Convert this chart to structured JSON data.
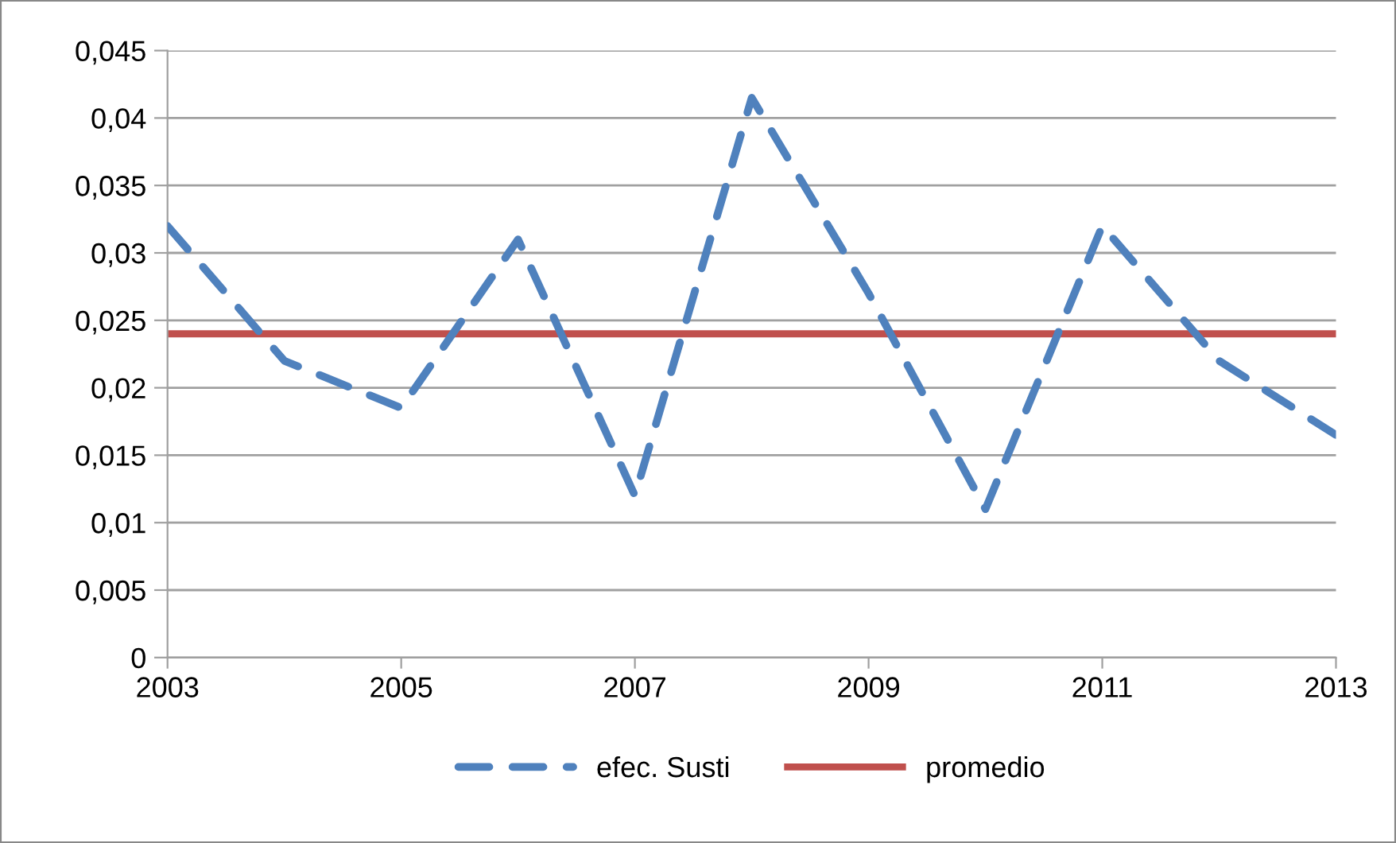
{
  "chart_data": {
    "type": "line",
    "x": [
      2003,
      2004,
      2005,
      2006,
      2007,
      2008,
      2009,
      2010,
      2011,
      2012,
      2013
    ],
    "series": [
      {
        "name": "efec. Susti",
        "color": "#4f81bd",
        "line_style": "dashed",
        "values": [
          0.032,
          0.022,
          0.0185,
          0.031,
          0.012,
          0.0415,
          0.027,
          0.011,
          0.032,
          0.022,
          0.0165
        ]
      },
      {
        "name": "promedio",
        "color": "#c0504d",
        "line_style": "solid",
        "values": [
          0.024,
          0.024,
          0.024,
          0.024,
          0.024,
          0.024,
          0.024,
          0.024,
          0.024,
          0.024,
          0.024
        ]
      }
    ],
    "xlim": [
      2003,
      2013
    ],
    "xticks": [
      2003,
      2005,
      2007,
      2009,
      2011,
      2013
    ],
    "ylim": [
      0,
      0.045
    ],
    "yticks": [
      {
        "value": 0,
        "label": "0"
      },
      {
        "value": 0.005,
        "label": "0,005"
      },
      {
        "value": 0.01,
        "label": "0,01"
      },
      {
        "value": 0.015,
        "label": "0,015"
      },
      {
        "value": 0.02,
        "label": "0,02"
      },
      {
        "value": 0.025,
        "label": "0,025"
      },
      {
        "value": 0.03,
        "label": "0,03"
      },
      {
        "value": 0.035,
        "label": "0,035"
      },
      {
        "value": 0.04,
        "label": "0,04"
      },
      {
        "value": 0.045,
        "label": "0,045"
      }
    ],
    "grid": "y",
    "legend": "bottom",
    "marker": "none"
  }
}
